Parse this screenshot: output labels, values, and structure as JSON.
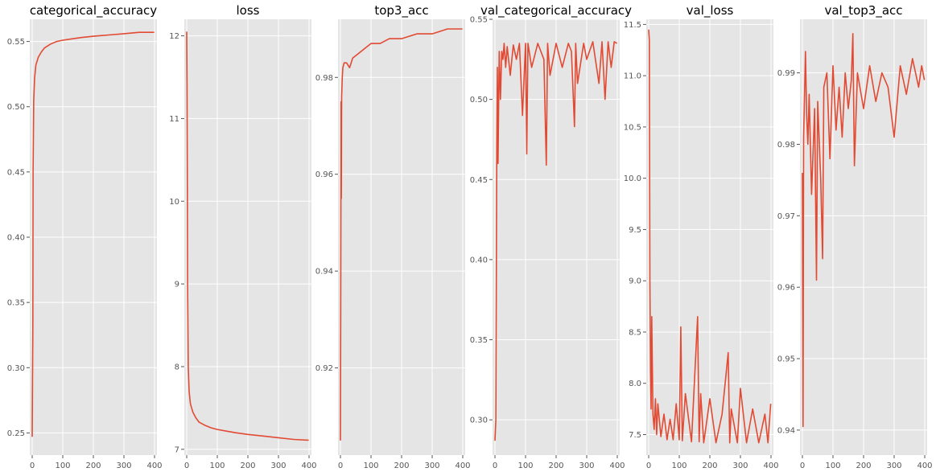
{
  "figure": {
    "line_color": "#e24a33",
    "panel_background": "#e5e5e5",
    "grid_color": "#ffffff",
    "grid": true
  },
  "chart_data": [
    {
      "type": "line",
      "title": "categorical_accuracy",
      "xlim": [
        0,
        400
      ],
      "ylim": [
        0.233,
        0.567
      ],
      "xticks": [
        0,
        100,
        200,
        300,
        400
      ],
      "yticks": [
        0.25,
        0.3,
        0.35,
        0.4,
        0.45,
        0.5,
        0.55
      ],
      "ytick_labels": [
        "0.25",
        "0.30",
        "0.35",
        "0.40",
        "0.45",
        "0.50",
        "0.55"
      ],
      "series": [
        {
          "x": [
            0,
            1,
            2,
            3,
            5,
            8,
            12,
            20,
            30,
            40,
            60,
            80,
            100,
            130,
            160,
            200,
            250,
            300,
            350,
            399
          ],
          "y": [
            0.247,
            0.29,
            0.33,
            0.45,
            0.505,
            0.522,
            0.532,
            0.538,
            0.542,
            0.545,
            0.548,
            0.55,
            0.551,
            0.552,
            0.553,
            0.554,
            0.555,
            0.556,
            0.557,
            0.557
          ]
        }
      ]
    },
    {
      "type": "line",
      "title": "loss",
      "xlim": [
        0,
        400
      ],
      "ylim": [
        6.93,
        12.2
      ],
      "xticks": [
        0,
        100,
        200,
        300,
        400
      ],
      "yticks": [
        7,
        8,
        9,
        10,
        11,
        12
      ],
      "ytick_labels": [
        "7",
        "8",
        "9",
        "10",
        "11",
        "12"
      ],
      "series": [
        {
          "x": [
            0,
            1,
            2,
            3,
            5,
            8,
            12,
            20,
            30,
            40,
            60,
            80,
            100,
            130,
            160,
            200,
            250,
            300,
            350,
            399
          ],
          "y": [
            12.05,
            11.4,
            10.2,
            9.0,
            8.0,
            7.7,
            7.55,
            7.45,
            7.38,
            7.33,
            7.29,
            7.26,
            7.24,
            7.22,
            7.2,
            7.18,
            7.16,
            7.14,
            7.12,
            7.11
          ]
        }
      ]
    },
    {
      "type": "line",
      "title": "top3_acc",
      "xlim": [
        0,
        400
      ],
      "ylim": [
        0.902,
        0.992
      ],
      "xticks": [
        0,
        100,
        200,
        300,
        400
      ],
      "yticks": [
        0.92,
        0.94,
        0.96,
        0.98
      ],
      "ytick_labels": [
        "0.92",
        "0.94",
        "0.96",
        "0.98"
      ],
      "series": [
        {
          "x": [
            0,
            1,
            2,
            3,
            4,
            6,
            8,
            12,
            20,
            30,
            40,
            60,
            80,
            100,
            130,
            160,
            200,
            250,
            300,
            350,
            399
          ],
          "y": [
            0.905,
            0.935,
            0.975,
            0.955,
            0.976,
            0.98,
            0.982,
            0.983,
            0.983,
            0.982,
            0.984,
            0.985,
            0.986,
            0.987,
            0.987,
            0.988,
            0.988,
            0.989,
            0.989,
            0.99,
            0.99
          ]
        }
      ]
    },
    {
      "type": "line",
      "title": "val_categorical_accuracy",
      "xlim": [
        0,
        400
      ],
      "ylim": [
        0.278,
        0.55
      ],
      "xticks": [
        0,
        100,
        200,
        300,
        400
      ],
      "yticks": [
        0.3,
        0.35,
        0.4,
        0.45,
        0.5,
        0.55
      ],
      "ytick_labels": [
        "0.30",
        "0.35",
        "0.40",
        "0.45",
        "0.50",
        "0.55"
      ],
      "series": [
        {
          "x": [
            0,
            3,
            6,
            8,
            10,
            14,
            18,
            22,
            26,
            30,
            35,
            40,
            50,
            60,
            70,
            80,
            90,
            100,
            104,
            108,
            120,
            140,
            160,
            168,
            172,
            180,
            200,
            220,
            240,
            250,
            260,
            264,
            270,
            290,
            300,
            320,
            340,
            350,
            360,
            370,
            380,
            390,
            399
          ],
          "y": [
            0.287,
            0.3,
            0.47,
            0.52,
            0.46,
            0.53,
            0.5,
            0.53,
            0.525,
            0.535,
            0.52,
            0.533,
            0.515,
            0.534,
            0.525,
            0.535,
            0.49,
            0.535,
            0.466,
            0.535,
            0.52,
            0.535,
            0.525,
            0.459,
            0.535,
            0.515,
            0.535,
            0.52,
            0.535,
            0.53,
            0.483,
            0.535,
            0.51,
            0.535,
            0.525,
            0.536,
            0.51,
            0.536,
            0.5,
            0.536,
            0.52,
            0.536,
            0.535
          ]
        }
      ]
    },
    {
      "type": "line",
      "title": "val_loss",
      "xlim": [
        0,
        400
      ],
      "ylim": [
        7.3,
        11.55
      ],
      "xticks": [
        0,
        100,
        200,
        300,
        400
      ],
      "yticks": [
        7.5,
        8.0,
        8.5,
        9.0,
        9.5,
        10.0,
        10.5,
        11.0,
        11.5
      ],
      "ytick_labels": [
        "7.5",
        "8.0",
        "8.5",
        "9.0",
        "9.5",
        "10.0",
        "10.5",
        "11.0",
        "11.5"
      ],
      "series": [
        {
          "x": [
            0,
            2,
            4,
            6,
            8,
            10,
            14,
            18,
            22,
            26,
            30,
            40,
            50,
            60,
            70,
            80,
            90,
            100,
            105,
            110,
            120,
            140,
            160,
            165,
            170,
            180,
            200,
            220,
            240,
            260,
            265,
            270,
            290,
            300,
            320,
            340,
            360,
            380,
            390,
            399
          ],
          "y": [
            11.45,
            11.35,
            9.0,
            8.1,
            7.75,
            8.65,
            7.7,
            7.55,
            7.85,
            7.5,
            7.8,
            7.48,
            7.7,
            7.45,
            7.65,
            7.45,
            7.8,
            7.45,
            8.55,
            7.44,
            7.9,
            7.43,
            8.65,
            7.43,
            7.9,
            7.42,
            7.85,
            7.42,
            7.7,
            8.3,
            7.42,
            7.75,
            7.42,
            7.95,
            7.42,
            7.75,
            7.42,
            7.7,
            7.42,
            7.8
          ]
        }
      ]
    },
    {
      "type": "line",
      "title": "val_top3_acc",
      "xlim": [
        0,
        400
      ],
      "ylim": [
        0.9365,
        0.9975
      ],
      "xticks": [
        0,
        100,
        200,
        300,
        400
      ],
      "yticks": [
        0.94,
        0.95,
        0.96,
        0.97,
        0.98,
        0.99
      ],
      "ytick_labels": [
        "0.94",
        "0.95",
        "0.96",
        "0.97",
        "0.98",
        "0.99"
      ],
      "series": [
        {
          "x": [
            0,
            2,
            4,
            6,
            10,
            14,
            18,
            22,
            30,
            40,
            46,
            50,
            60,
            66,
            70,
            80,
            90,
            100,
            110,
            120,
            130,
            140,
            150,
            160,
            165,
            170,
            180,
            200,
            220,
            240,
            260,
            280,
            300,
            320,
            340,
            360,
            380,
            390,
            399
          ],
          "y": [
            0.976,
            0.9405,
            0.981,
            0.985,
            0.993,
            0.984,
            0.98,
            0.987,
            0.973,
            0.985,
            0.961,
            0.986,
            0.975,
            0.964,
            0.988,
            0.99,
            0.978,
            0.991,
            0.982,
            0.988,
            0.981,
            0.99,
            0.985,
            0.989,
            0.9955,
            0.977,
            0.99,
            0.985,
            0.991,
            0.986,
            0.99,
            0.988,
            0.981,
            0.991,
            0.987,
            0.992,
            0.988,
            0.991,
            0.989
          ]
        }
      ]
    }
  ]
}
